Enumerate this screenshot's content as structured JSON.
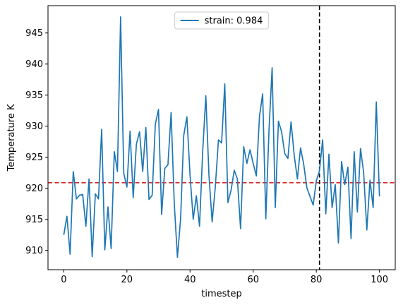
{
  "chart_data": {
    "type": "line",
    "xlabel": "timestep",
    "ylabel": "Temperature K",
    "xlim": [
      -5,
      105
    ],
    "ylim": [
      906.9,
      949.4
    ],
    "xticks": [
      0,
      20,
      40,
      60,
      80,
      100
    ],
    "yticks": [
      910,
      915,
      920,
      925,
      930,
      935,
      940,
      945
    ],
    "grid": false,
    "legend_position": "top-center",
    "series": [
      {
        "name": "strain: 0.984",
        "color": "#1f77b4",
        "x": [
          0,
          1,
          2,
          3,
          4,
          5,
          6,
          7,
          8,
          9,
          10,
          11,
          12,
          13,
          14,
          15,
          16,
          17,
          18,
          19,
          20,
          21,
          22,
          23,
          24,
          25,
          26,
          27,
          28,
          29,
          30,
          31,
          32,
          33,
          34,
          35,
          36,
          37,
          38,
          39,
          40,
          41,
          42,
          43,
          44,
          45,
          46,
          47,
          48,
          49,
          50,
          51,
          52,
          53,
          54,
          55,
          56,
          57,
          58,
          59,
          60,
          61,
          62,
          63,
          64,
          65,
          66,
          67,
          68,
          69,
          70,
          71,
          72,
          73,
          74,
          75,
          76,
          77,
          78,
          79,
          80,
          81,
          82,
          83,
          84,
          85,
          86,
          87,
          88,
          89,
          90,
          91,
          92,
          93,
          94,
          95,
          96,
          97,
          98,
          99,
          100
        ],
        "y": [
          912.5,
          915.5,
          909.4,
          922.7,
          918.3,
          918.9,
          919.0,
          913.9,
          921.5,
          909.0,
          919.1,
          918.3,
          929.5,
          910.1,
          917.0,
          910.3,
          925.9,
          922.7,
          947.6,
          922.4,
          920.2,
          929.2,
          918.5,
          927.1,
          929.1,
          922.7,
          929.8,
          918.2,
          918.9,
          930.3,
          932.7,
          915.8,
          923.2,
          923.8,
          932.2,
          917.6,
          908.9,
          915.0,
          928.5,
          931.5,
          922.1,
          915.0,
          918.8,
          913.9,
          925.9,
          934.9,
          922.0,
          914.6,
          920.2,
          927.8,
          927.3,
          936.8,
          917.7,
          919.7,
          922.9,
          921.5,
          913.5,
          926.7,
          924.0,
          926.2,
          924.0,
          922.0,
          931.6,
          935.2,
          915.1,
          929.2,
          939.4,
          916.9,
          930.8,
          929.1,
          925.6,
          924.8,
          930.7,
          925.3,
          921.5,
          926.5,
          923.9,
          920.1,
          918.7,
          917.3,
          921.2,
          922.8,
          927.8,
          915.9,
          925.5,
          916.9,
          920.6,
          911.2,
          924.3,
          920.6,
          923.4,
          911.9,
          925.9,
          916.2,
          926.4,
          922.5,
          913.3,
          921.3,
          916.9,
          933.9,
          918.7
        ]
      }
    ],
    "hlines": [
      {
        "y": 920.9,
        "color": "#d62728",
        "style": "dashed"
      }
    ],
    "vlines": [
      {
        "x": 81,
        "color": "#000000",
        "style": "dashed"
      }
    ]
  }
}
